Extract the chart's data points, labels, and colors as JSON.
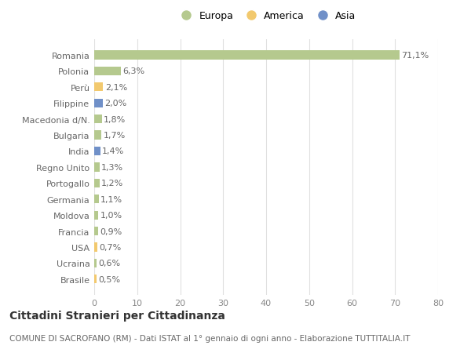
{
  "countries": [
    "Romania",
    "Polonia",
    "Perù",
    "Filippine",
    "Macedonia d/N.",
    "Bulgaria",
    "India",
    "Regno Unito",
    "Portogallo",
    "Germania",
    "Moldova",
    "Francia",
    "USA",
    "Ucraina",
    "Brasile"
  ],
  "values": [
    71.1,
    6.3,
    2.1,
    2.0,
    1.8,
    1.7,
    1.4,
    1.3,
    1.2,
    1.1,
    1.0,
    0.9,
    0.7,
    0.6,
    0.5
  ],
  "labels": [
    "71,1%",
    "6,3%",
    "2,1%",
    "2,0%",
    "1,8%",
    "1,7%",
    "1,4%",
    "1,3%",
    "1,2%",
    "1,1%",
    "1,0%",
    "0,9%",
    "0,7%",
    "0,6%",
    "0,5%"
  ],
  "colors": [
    "#b5c98e",
    "#b5c98e",
    "#f2c96e",
    "#7090c8",
    "#b5c98e",
    "#b5c98e",
    "#7090c8",
    "#b5c98e",
    "#b5c98e",
    "#b5c98e",
    "#b5c98e",
    "#b5c98e",
    "#f2c96e",
    "#b5c98e",
    "#f2c96e"
  ],
  "legend_labels": [
    "Europa",
    "America",
    "Asia"
  ],
  "legend_colors": [
    "#b5c98e",
    "#f2c96e",
    "#7090c8"
  ],
  "title": "Cittadini Stranieri per Cittadinanza",
  "subtitle": "COMUNE DI SACROFANO (RM) - Dati ISTAT al 1° gennaio di ogni anno - Elaborazione TUTTITALIA.IT",
  "xlim": [
    0,
    80
  ],
  "xticks": [
    0,
    10,
    20,
    30,
    40,
    50,
    60,
    70,
    80
  ],
  "bg_color": "#ffffff",
  "grid_color": "#e0e0e0",
  "bar_height": 0.55,
  "label_fontsize": 8,
  "tick_fontsize": 8,
  "title_fontsize": 10,
  "subtitle_fontsize": 7.5
}
